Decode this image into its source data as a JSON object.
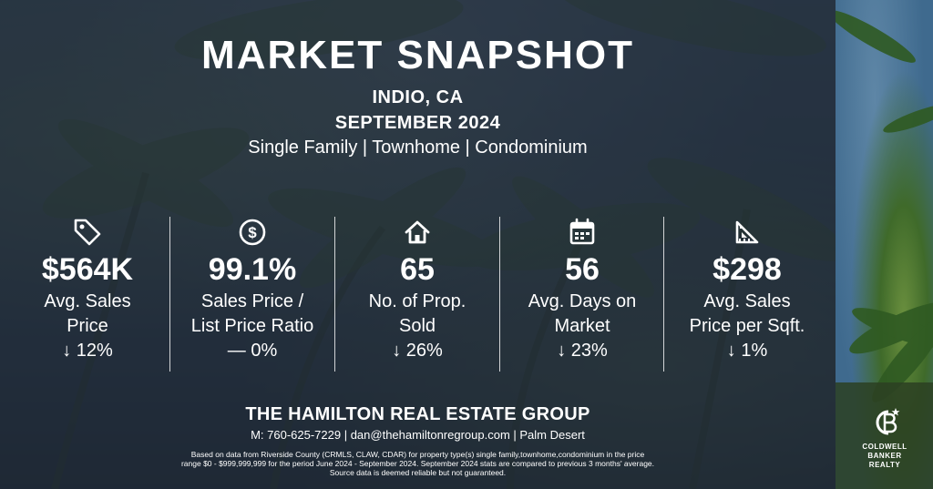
{
  "header": {
    "title": "MARKET SNAPSHOT",
    "location": "INDIO, CA",
    "period": "SEPTEMBER 2024",
    "property_types": "Single Family | Townhome | Condominium"
  },
  "stats": [
    {
      "icon": "price-tag-icon",
      "value": "$564K",
      "label_lines": [
        "Avg. Sales",
        "Price"
      ],
      "change": "↓ 12%"
    },
    {
      "icon": "dollar-circle-icon",
      "value": "99.1%",
      "label_lines": [
        "Sales Price /",
        "List Price Ratio"
      ],
      "change": "— 0%"
    },
    {
      "icon": "house-icon",
      "value": "65",
      "label_lines": [
        "No. of Prop.",
        "Sold"
      ],
      "change": "↓ 26%"
    },
    {
      "icon": "calendar-icon",
      "value": "56",
      "label_lines": [
        "Avg. Days on",
        "Market"
      ],
      "change": "↓ 23%"
    },
    {
      "icon": "ruler-triangle-icon",
      "value": "$298",
      "label_lines": [
        "Avg. Sales",
        "Price per Sqft."
      ],
      "change": "↓ 1%"
    }
  ],
  "footer": {
    "group_name": "THE HAMILTON REAL ESTATE GROUP",
    "contact": "M: 760-625-7229 | dan@thehamiltonregroup.com | Palm Desert",
    "disclaimer_lines": [
      "Based on data from Riverside County (CRMLS, CLAW, CDAR) for property type(s) single family,townhome,condominium in the price",
      "range $0 - $999,999,999 for the period June 2024 - September 2024. September 2024 stats are compared to previous 3 months' average.",
      "Source data is deemed reliable but not guaranteed."
    ]
  },
  "brand": {
    "logo_icon": "coldwell-banker-logo-icon",
    "lines": [
      "COLDWELL",
      "BANKER",
      "REALTY"
    ]
  },
  "colors": {
    "text": "#ffffff",
    "overlay": "#1e2834",
    "sidebar_sky": "#4c7aa2",
    "foliage": "#3f6a2a"
  }
}
